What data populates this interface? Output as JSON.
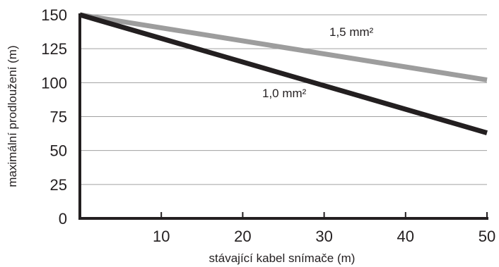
{
  "chart_data": {
    "type": "line",
    "title": "",
    "xlabel": "stávající kabel snímače (m)",
    "ylabel": "maximální prodloužení (m)",
    "xlim": [
      0,
      50
    ],
    "ylim": [
      0,
      150
    ],
    "x_ticks": [
      10,
      20,
      30,
      40,
      50
    ],
    "y_ticks": [
      0,
      25,
      50,
      75,
      100,
      125,
      150
    ],
    "grid": "horizontal",
    "legend": "none",
    "series": [
      {
        "name": "1,5 mm²",
        "color": "#9d9d9d",
        "x": [
          0,
          50
        ],
        "y": [
          150,
          102
        ]
      },
      {
        "name": "1,0 mm²",
        "color": "#231f20",
        "x": [
          0,
          50
        ],
        "y": [
          150,
          63
        ]
      }
    ]
  }
}
